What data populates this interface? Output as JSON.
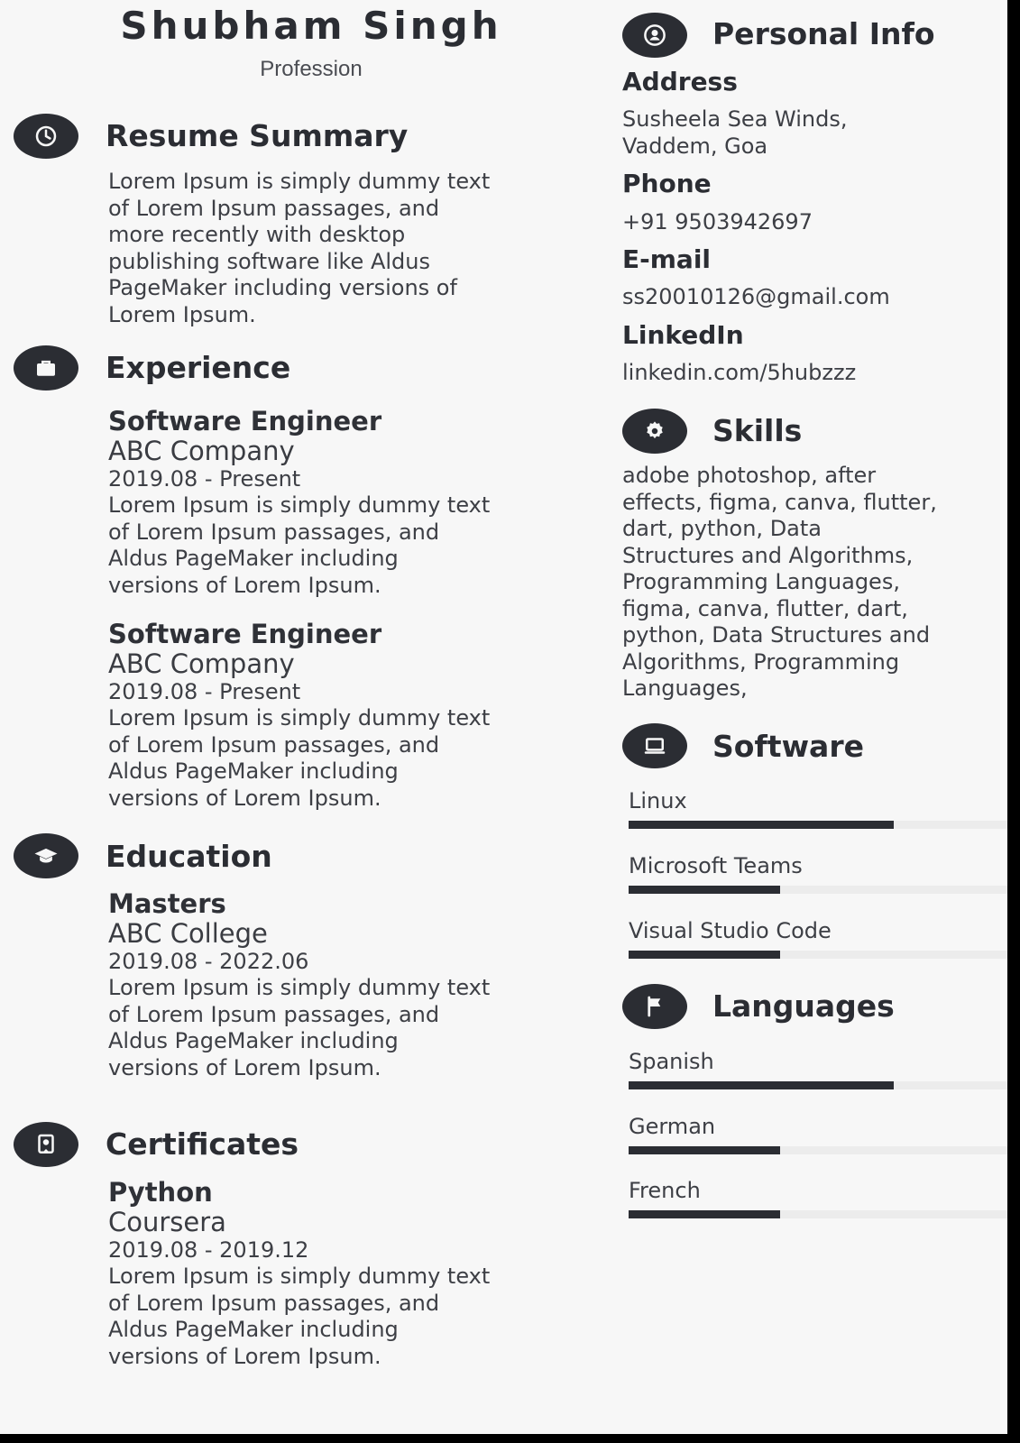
{
  "header": {
    "name": "Shubham Singh",
    "profession": "Profession"
  },
  "summary": {
    "title": "Resume Summary",
    "icon": "clock-icon",
    "text": "Lorem Ipsum is simply dummy text\nof  Lorem Ipsum passages, and\nmore recently with desktop\npublishing software like Aldus\nPageMaker including versions of\nLorem Ipsum."
  },
  "experience": {
    "title": "Experience",
    "icon": "briefcase-icon",
    "items": [
      {
        "title": "Software Engineer",
        "org": "ABC Company",
        "dates": "2019.08 - Present",
        "desc": "Lorem Ipsum is simply dummy text\nof  Lorem Ipsum passages, and\nAldus PageMaker including\nversions of Lorem Ipsum."
      },
      {
        "title": "Software Engineer",
        "org": "ABC Company",
        "dates": "2019.08 - Present",
        "desc": "Lorem Ipsum is simply dummy text\nof  Lorem Ipsum passages, and\nAldus PageMaker including\nversions of Lorem Ipsum."
      }
    ]
  },
  "education": {
    "title": "Education",
    "icon": "graduation-cap-icon",
    "items": [
      {
        "title": "Masters",
        "org": "ABC College",
        "dates": "2019.08 - 2022.06",
        "desc": "Lorem Ipsum is simply dummy text\nof  Lorem Ipsum passages, and\nAldus PageMaker including\nversions of Lorem Ipsum."
      }
    ]
  },
  "certificates": {
    "title": "Certificates",
    "icon": "certificate-icon",
    "items": [
      {
        "title": "Python",
        "org": "Coursera",
        "dates": "2019.08 - 2019.12",
        "desc": "Lorem Ipsum is simply dummy text\nof  Lorem Ipsum passages, and\nAldus PageMaker including\nversions of Lorem Ipsum."
      }
    ]
  },
  "personal_info": {
    "title": "Personal Info",
    "icon": "person-icon",
    "address_label": "Address",
    "address": "Susheela Sea Winds,\nVaddem, Goa",
    "phone_label": "Phone",
    "phone": "+91 9503942697",
    "email_label": "E-mail",
    "email": "ss20010126@gmail.com",
    "linkedin_label": "LinkedIn",
    "linkedin": "linkedin.com/5hubzzz"
  },
  "skills": {
    "title": "Skills",
    "icon": "gear-icon",
    "text": "adobe photoshop, after\neffects, figma, canva, flutter,\ndart, python, Data\nStructures and Algorithms,\nProgramming Languages,\nfigma, canva, flutter, dart,\npython, Data Structures and\nAlgorithms, Programming\nLanguages,"
  },
  "software": {
    "title": "Software",
    "icon": "laptop-icon",
    "items": [
      {
        "name": "Linux",
        "level": 0.7
      },
      {
        "name": "Microsoft Teams",
        "level": 0.4
      },
      {
        "name": "Visual Studio Code",
        "level": 0.4
      }
    ]
  },
  "languages": {
    "title": "Languages",
    "icon": "flag-icon",
    "items": [
      {
        "name": "Spanish",
        "level": 0.7
      },
      {
        "name": "German",
        "level": 0.4
      },
      {
        "name": "French",
        "level": 0.4
      }
    ]
  },
  "colors": {
    "accent": "#2b2d33",
    "page_background": "#f7f7f7",
    "text": "#3d3f45"
  }
}
